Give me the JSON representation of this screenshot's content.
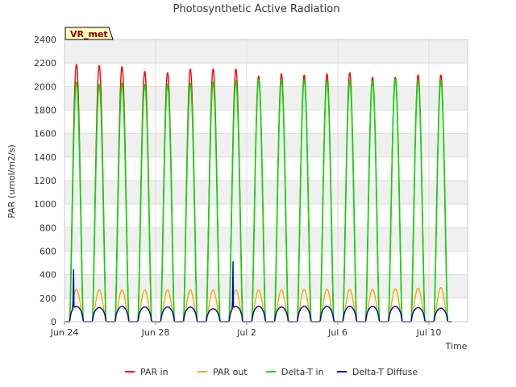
{
  "chart_data": {
    "type": "line",
    "title": "Photosynthetic Active Radiation",
    "xlabel": "Time",
    "ylabel": "PAR (umol/m2/s)",
    "ylim": [
      0,
      2400
    ],
    "yticks": [
      0,
      200,
      400,
      600,
      800,
      1000,
      1200,
      1400,
      1600,
      1800,
      2000,
      2200,
      2400
    ],
    "xlim_days": [
      0,
      17.7
    ],
    "xticks": [
      {
        "day": 0,
        "label": "Jun 24"
      },
      {
        "day": 4,
        "label": "Jun 28"
      },
      {
        "day": 8,
        "label": "Jul 2"
      },
      {
        "day": 12,
        "label": "Jul 6"
      },
      {
        "day": 16,
        "label": "Jul 10"
      }
    ],
    "grid": true,
    "legend_position": "bottom",
    "annotation": "VR_met",
    "days": [
      "Jun 24",
      "Jun 25",
      "Jun 26",
      "Jun 27",
      "Jun 28",
      "Jun 29",
      "Jun 30",
      "Jul 1",
      "Jul 2",
      "Jul 3",
      "Jul 4",
      "Jul 5",
      "Jul 6",
      "Jul 7",
      "Jul 8",
      "Jul 9",
      "Jul 10"
    ],
    "daylight_hours": {
      "sunrise": 5.5,
      "noon": 12.6,
      "sunset": 19.7
    },
    "series": [
      {
        "name": "PAR in",
        "color": "#ff0000",
        "daily_peaks": [
          2190,
          2180,
          2170,
          2130,
          2120,
          2150,
          2150,
          2150,
          2090,
          2110,
          2100,
          2110,
          2120,
          2080,
          2080,
          2100,
          2100
        ]
      },
      {
        "name": "PAR out",
        "color": "#ffa500",
        "daily_peaks": [
          275,
          270,
          270,
          270,
          270,
          270,
          270,
          270,
          270,
          270,
          275,
          275,
          275,
          275,
          280,
          285,
          290
        ]
      },
      {
        "name": "Delta-T in",
        "color": "#00dd00",
        "daily_peaks": [
          2040,
          2020,
          2030,
          2020,
          2020,
          2030,
          2040,
          2050,
          2060,
          2060,
          2060,
          2050,
          2050,
          2050,
          2060,
          2050,
          2050
        ]
      },
      {
        "name": "Delta-T Diffuse",
        "color": "#0000cc",
        "daily_peaks": [
          510,
          120,
          140,
          125,
          125,
          125,
          110,
          590,
          135,
          125,
          135,
          160,
          140,
          140,
          130,
          120,
          115
        ]
      }
    ]
  }
}
